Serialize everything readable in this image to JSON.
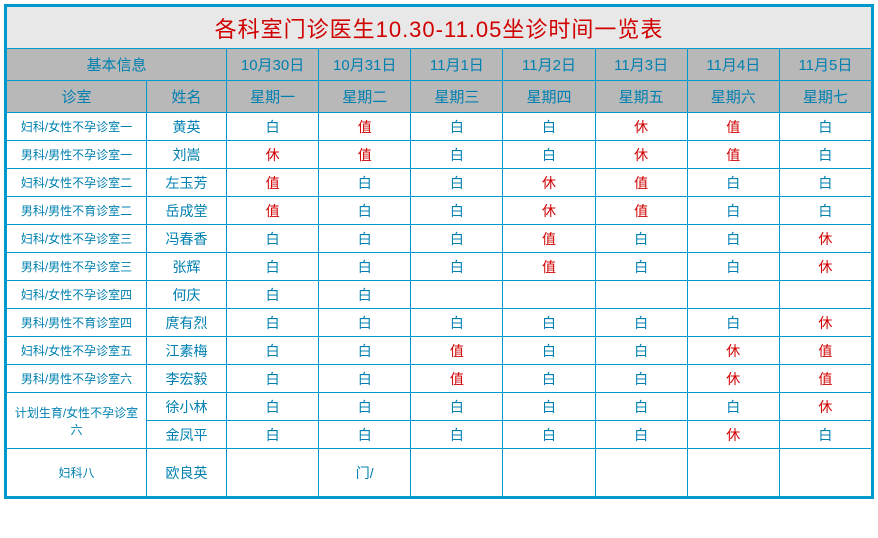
{
  "title": "各科室门诊医生10.30-11.05坐诊时间一览表",
  "basic_info_label": "基本信息",
  "dept_label": "诊室",
  "name_label": "姓名",
  "dates": [
    "10月30日",
    "10月31日",
    "11月1日",
    "11月2日",
    "11月3日",
    "11月4日",
    "11月5日"
  ],
  "weekdays": [
    "星期一",
    "星期二",
    "星期三",
    "星期四",
    "星期五",
    "星期六",
    "星期七"
  ],
  "colors": {
    "border": "#0099cc",
    "header_bg": "#b8b8b8",
    "title_bg": "#e8e8e8",
    "blue_text": "#0080b0",
    "red_text": "#d00000"
  },
  "rows": [
    {
      "dept": "妇科/女性不孕诊室一",
      "name": "黄英",
      "cells": [
        {
          "t": "白",
          "c": "w"
        },
        {
          "t": "值",
          "c": "r"
        },
        {
          "t": "白",
          "c": "w"
        },
        {
          "t": "白",
          "c": "w"
        },
        {
          "t": "休",
          "c": "r"
        },
        {
          "t": "值",
          "c": "r"
        },
        {
          "t": "白",
          "c": "w"
        }
      ]
    },
    {
      "dept": "男科/男性不孕诊室一",
      "name": "刘嵩",
      "cells": [
        {
          "t": "休",
          "c": "r"
        },
        {
          "t": "值",
          "c": "r"
        },
        {
          "t": "白",
          "c": "w"
        },
        {
          "t": "白",
          "c": "w"
        },
        {
          "t": "休",
          "c": "r"
        },
        {
          "t": "值",
          "c": "r"
        },
        {
          "t": "白",
          "c": "w"
        }
      ]
    },
    {
      "dept": "妇科/女性不孕诊室二",
      "name": "左玉芳",
      "cells": [
        {
          "t": "值",
          "c": "r"
        },
        {
          "t": "白",
          "c": "w"
        },
        {
          "t": "白",
          "c": "w"
        },
        {
          "t": "休",
          "c": "r"
        },
        {
          "t": "值",
          "c": "r"
        },
        {
          "t": "白",
          "c": "w"
        },
        {
          "t": "白",
          "c": "w"
        }
      ]
    },
    {
      "dept": "男科/男性不育诊室二",
      "name": "岳成堂",
      "cells": [
        {
          "t": "值",
          "c": "r"
        },
        {
          "t": "白",
          "c": "w"
        },
        {
          "t": "白",
          "c": "w"
        },
        {
          "t": "休",
          "c": "r"
        },
        {
          "t": "值",
          "c": "r"
        },
        {
          "t": "白",
          "c": "w"
        },
        {
          "t": "白",
          "c": "w"
        }
      ]
    },
    {
      "dept": "妇科/女性不孕诊室三",
      "name": "冯春香",
      "cells": [
        {
          "t": "白",
          "c": "w"
        },
        {
          "t": "白",
          "c": "w"
        },
        {
          "t": "白",
          "c": "w"
        },
        {
          "t": "值",
          "c": "r"
        },
        {
          "t": "白",
          "c": "w"
        },
        {
          "t": "白",
          "c": "w"
        },
        {
          "t": "休",
          "c": "r"
        }
      ]
    },
    {
      "dept": "男科/男性不孕诊室三",
      "name": "张辉",
      "cells": [
        {
          "t": "白",
          "c": "w"
        },
        {
          "t": "白",
          "c": "w"
        },
        {
          "t": "白",
          "c": "w"
        },
        {
          "t": "值",
          "c": "r"
        },
        {
          "t": "白",
          "c": "w"
        },
        {
          "t": "白",
          "c": "w"
        },
        {
          "t": "休",
          "c": "r"
        }
      ]
    },
    {
      "dept": "妇科/女性不孕诊室四",
      "name": "何庆",
      "cells": [
        {
          "t": "白",
          "c": "w"
        },
        {
          "t": "白",
          "c": "w"
        },
        {
          "t": "",
          "c": "w"
        },
        {
          "t": "",
          "c": "w"
        },
        {
          "t": "",
          "c": "w"
        },
        {
          "t": "",
          "c": "w"
        },
        {
          "t": "",
          "c": "w"
        }
      ]
    },
    {
      "dept": "男科/男性不育诊室四",
      "name": "庹有烈",
      "cells": [
        {
          "t": "白",
          "c": "w"
        },
        {
          "t": "白",
          "c": "w"
        },
        {
          "t": "白",
          "c": "w"
        },
        {
          "t": "白",
          "c": "w"
        },
        {
          "t": "白",
          "c": "w"
        },
        {
          "t": "白",
          "c": "w"
        },
        {
          "t": "休",
          "c": "r"
        }
      ]
    },
    {
      "dept": "妇科/女性不孕诊室五",
      "name": "江素梅",
      "cells": [
        {
          "t": "白",
          "c": "w"
        },
        {
          "t": "白",
          "c": "w"
        },
        {
          "t": "值",
          "c": "r"
        },
        {
          "t": "白",
          "c": "w"
        },
        {
          "t": "白",
          "c": "w"
        },
        {
          "t": "休",
          "c": "r"
        },
        {
          "t": "值",
          "c": "r"
        }
      ]
    },
    {
      "dept": "男科/男性不孕诊室六",
      "name": "李宏毅",
      "cells": [
        {
          "t": "白",
          "c": "w"
        },
        {
          "t": "白",
          "c": "w"
        },
        {
          "t": "值",
          "c": "r"
        },
        {
          "t": "白",
          "c": "w"
        },
        {
          "t": "白",
          "c": "w"
        },
        {
          "t": "休",
          "c": "r"
        },
        {
          "t": "值",
          "c": "r"
        }
      ]
    },
    {
      "dept": "计划生育/女性不孕诊室六",
      "rowspan": 2,
      "name": "徐小林",
      "cells": [
        {
          "t": "白",
          "c": "w"
        },
        {
          "t": "白",
          "c": "w"
        },
        {
          "t": "白",
          "c": "w"
        },
        {
          "t": "白",
          "c": "w"
        },
        {
          "t": "白",
          "c": "w"
        },
        {
          "t": "白",
          "c": "w"
        },
        {
          "t": "休",
          "c": "r"
        }
      ]
    },
    {
      "dept": null,
      "name": "金凤平",
      "cells": [
        {
          "t": "白",
          "c": "w"
        },
        {
          "t": "白",
          "c": "w"
        },
        {
          "t": "白",
          "c": "w"
        },
        {
          "t": "白",
          "c": "w"
        },
        {
          "t": "白",
          "c": "w"
        },
        {
          "t": "休",
          "c": "r"
        },
        {
          "t": "白",
          "c": "w"
        }
      ]
    },
    {
      "dept": "妇科八",
      "name": "欧良英",
      "cells": [
        {
          "t": "",
          "c": "w"
        },
        {
          "t": "门/",
          "c": "w"
        },
        {
          "t": "",
          "c": "w"
        },
        {
          "t": "",
          "c": "w"
        },
        {
          "t": "",
          "c": "w"
        },
        {
          "t": "",
          "c": "w"
        },
        {
          "t": "",
          "c": "w"
        }
      ],
      "tall": true
    }
  ]
}
